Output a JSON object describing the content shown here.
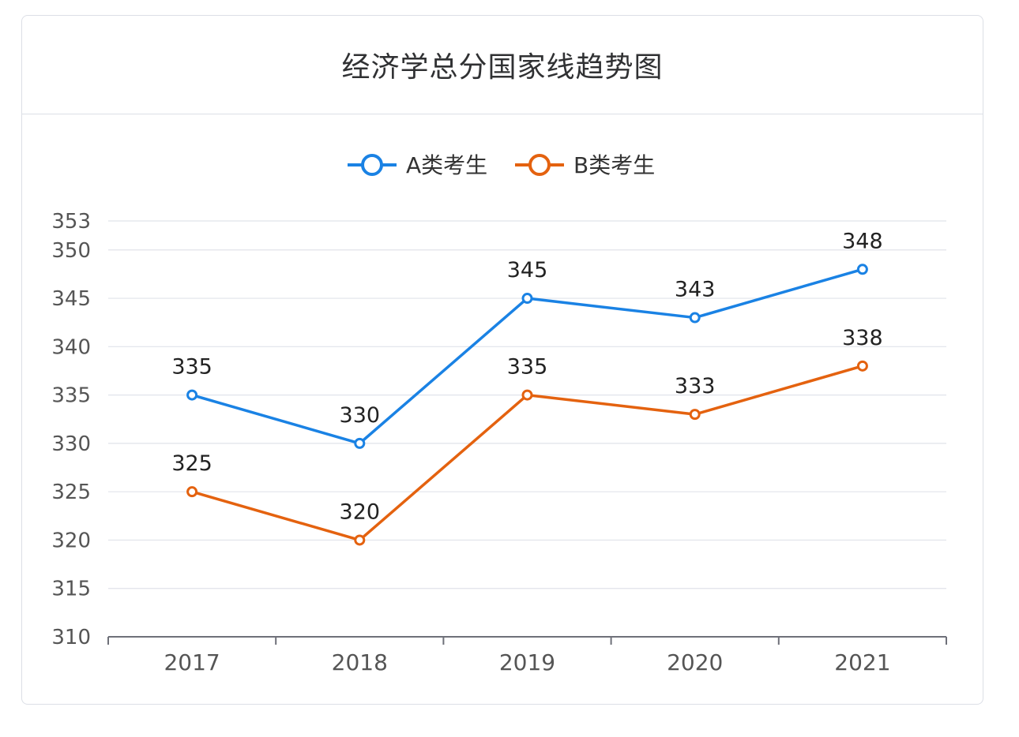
{
  "chart_data": {
    "type": "line",
    "title": "经济学总分国家线趋势图",
    "categories": [
      "2017",
      "2018",
      "2019",
      "2020",
      "2021"
    ],
    "yticks": [
      310,
      315,
      320,
      325,
      330,
      335,
      340,
      345,
      350,
      353
    ],
    "ylim": [
      310,
      353
    ],
    "grid": true,
    "legend_position": "top-center",
    "series": [
      {
        "name": "A类考生",
        "color": "#1a82e4",
        "values": [
          335,
          330,
          345,
          343,
          348
        ]
      },
      {
        "name": "B类考生",
        "color": "#e4620f",
        "values": [
          325,
          320,
          335,
          333,
          338
        ]
      }
    ]
  }
}
